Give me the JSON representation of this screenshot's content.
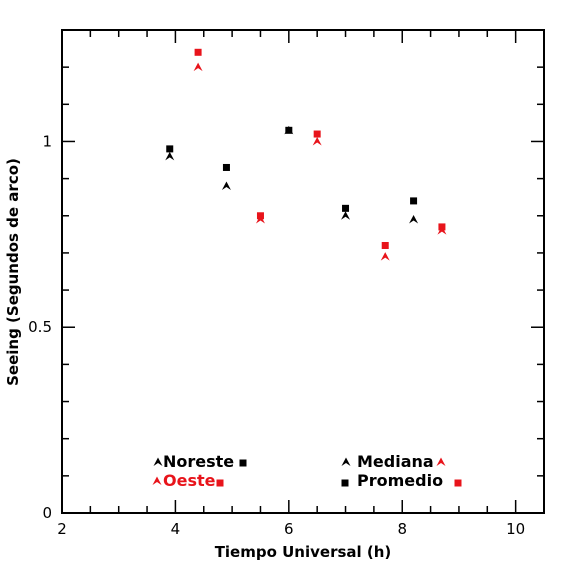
{
  "chart_data": {
    "type": "scatter",
    "xlabel": "Tiempo Universal (h)",
    "ylabel": "Seeing (Segundos de arco)",
    "xlim": [
      2,
      10.5
    ],
    "ylim": [
      0,
      1.3
    ],
    "x_ticks": [
      {
        "value": 2,
        "label": "2"
      },
      {
        "value": 4,
        "label": "4"
      },
      {
        "value": 6,
        "label": "6"
      },
      {
        "value": 8,
        "label": "8"
      },
      {
        "value": 10,
        "label": "10"
      }
    ],
    "y_ticks": [
      {
        "value": 0,
        "label": "0"
      },
      {
        "value": 0.5,
        "label": "0.5"
      },
      {
        "value": 1,
        "label": "1"
      }
    ],
    "grid": false,
    "legend_position": "bottom",
    "colors": {
      "noreste": "#000000",
      "oeste": "#e8141b"
    },
    "series": [
      {
        "name": "Noreste",
        "color": "#000000",
        "mediana": [
          [
            3.9,
            0.96
          ],
          [
            4.9,
            0.88
          ],
          [
            6.0,
            1.03
          ],
          [
            7.0,
            0.8
          ],
          [
            8.2,
            0.79
          ]
        ],
        "promedio": [
          [
            3.9,
            0.98
          ],
          [
            4.9,
            0.93
          ],
          [
            6.0,
            1.03
          ],
          [
            7.0,
            0.82
          ],
          [
            8.2,
            0.84
          ]
        ]
      },
      {
        "name": "Oeste",
        "color": "#e8141b",
        "mediana": [
          [
            4.4,
            1.2
          ],
          [
            5.5,
            0.79
          ],
          [
            6.5,
            1.0
          ],
          [
            7.7,
            0.69
          ],
          [
            8.7,
            0.76
          ]
        ],
        "promedio": [
          [
            4.4,
            1.24
          ],
          [
            5.5,
            0.8
          ],
          [
            6.5,
            1.02
          ],
          [
            7.7,
            0.72
          ],
          [
            8.7,
            0.77
          ]
        ]
      }
    ],
    "legend": {
      "sites": [
        "Noreste",
        "Oeste"
      ],
      "statistics": [
        "Mediana",
        "Promedio"
      ]
    }
  }
}
